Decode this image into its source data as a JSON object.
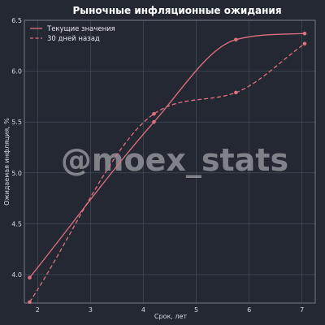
{
  "chart_data": {
    "type": "line",
    "title": "Рыночные инфляционные ожидания",
    "xlabel": "Срок, лет",
    "ylabel": "Ожидаемая инфляция, %",
    "xlim": [
      1.75,
      7.25
    ],
    "ylim": [
      3.72,
      6.5
    ],
    "xticks": [
      2,
      3,
      4,
      5,
      6,
      7
    ],
    "yticks": [
      4.0,
      4.5,
      5.0,
      5.5,
      6.0,
      6.5
    ],
    "grid": true,
    "legend_position": "top-left",
    "series": [
      {
        "name": "Текущие значения",
        "style": "solid",
        "color": "#e07080",
        "x": [
          1.85,
          4.2,
          5.75,
          7.05
        ],
        "y": [
          3.97,
          5.5,
          6.31,
          6.37
        ]
      },
      {
        "name": "30 дней назад",
        "style": "dashed",
        "color": "#e07080",
        "x": [
          1.85,
          4.2,
          5.75,
          7.05
        ],
        "y": [
          3.73,
          5.58,
          5.79,
          6.27
        ]
      }
    ]
  },
  "watermark": "@moex_stats",
  "colors": {
    "background": "#232833",
    "grid": "#4a5261",
    "series": "#e07080"
  }
}
